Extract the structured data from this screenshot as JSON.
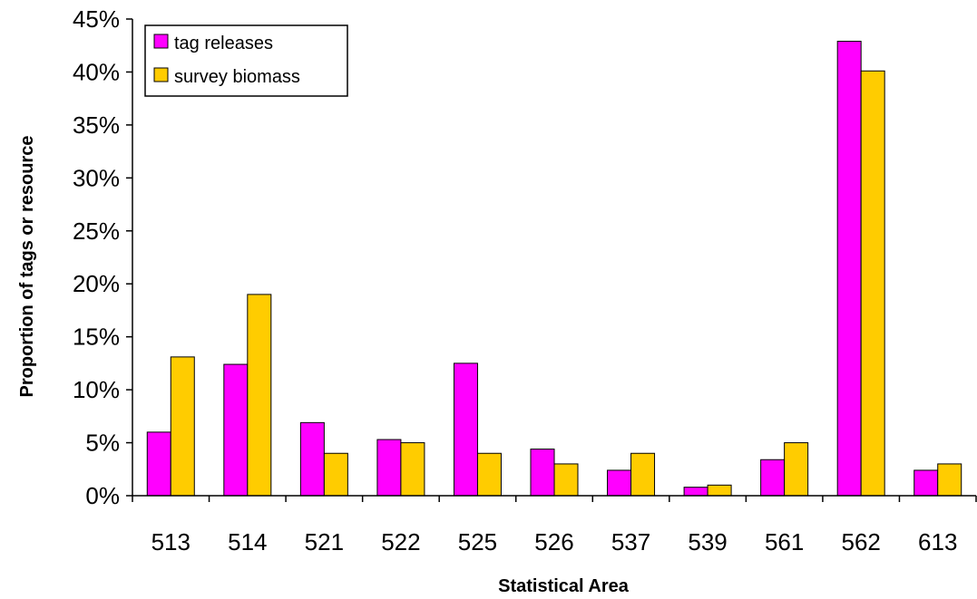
{
  "chart_data": {
    "type": "bar",
    "title": "",
    "xlabel": "Statistical Area",
    "ylabel": "Proportion of tags or resource",
    "categories": [
      "513",
      "514",
      "521",
      "522",
      "525",
      "526",
      "537",
      "539",
      "561",
      "562",
      "613"
    ],
    "series": [
      {
        "name": "tag releases",
        "color": "#FF00FF",
        "values": [
          6.0,
          12.4,
          6.9,
          5.3,
          12.5,
          4.4,
          2.4,
          0.8,
          3.4,
          42.9,
          2.4
        ]
      },
      {
        "name": "survey biomass",
        "color": "#FFCC00",
        "values": [
          13.1,
          19.0,
          4.0,
          5.0,
          4.0,
          3.0,
          4.0,
          1.0,
          5.0,
          40.1,
          3.0
        ]
      }
    ],
    "ylim": [
      0,
      45
    ],
    "y_ticks": [
      "0%",
      "5%",
      "10%",
      "15%",
      "20%",
      "25%",
      "30%",
      "35%",
      "40%",
      "45%"
    ],
    "grid": false,
    "legend": {
      "position": "top-left",
      "entries": [
        "tag releases",
        "survey biomass"
      ]
    }
  }
}
